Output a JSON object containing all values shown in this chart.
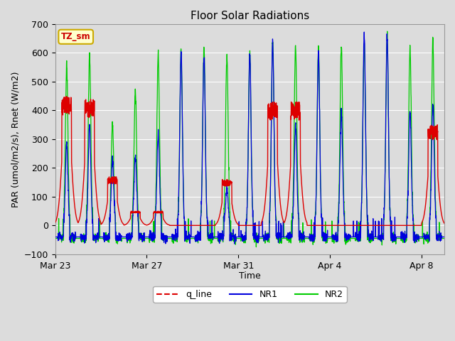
{
  "title": "Floor Solar Radiations",
  "xlabel": "Time",
  "ylabel": "PAR (umol/m2/s), Rnet (W/m2)",
  "ylim": [
    -100,
    700
  ],
  "yticks": [
    -100,
    0,
    100,
    200,
    300,
    400,
    500,
    600,
    700
  ],
  "xtick_labels": [
    "Mar 23",
    "Mar 27",
    "Mar 31",
    "Apr 4",
    "Apr 8"
  ],
  "background_color": "#dcdcdc",
  "plot_bg_color": "#dcdcdc",
  "line_colors": {
    "q_line": "#dd0000",
    "NR1": "#0000dd",
    "NR2": "#00cc00"
  },
  "legend_label": "TZ_sm",
  "legend_box_color": "#ffffcc",
  "legend_box_edge": "#ccaa00",
  "n_days": 17,
  "samples_per_day": 144,
  "night_nr1": -40,
  "night_nr2": -45,
  "nr2_peaks": [
    560,
    595,
    350,
    470,
    595,
    610,
    620,
    590,
    600,
    640,
    620,
    620,
    620,
    625,
    655,
    620,
    640
  ],
  "nr1_peaks": [
    285,
    345,
    220,
    245,
    315,
    610,
    590,
    125,
    600,
    640,
    350,
    600,
    390,
    660,
    660,
    400,
    425
  ],
  "q_peaks": [
    450,
    440,
    170,
    50,
    50,
    0,
    0,
    160,
    0,
    430,
    430,
    0,
    0,
    0,
    0,
    0,
    350
  ]
}
